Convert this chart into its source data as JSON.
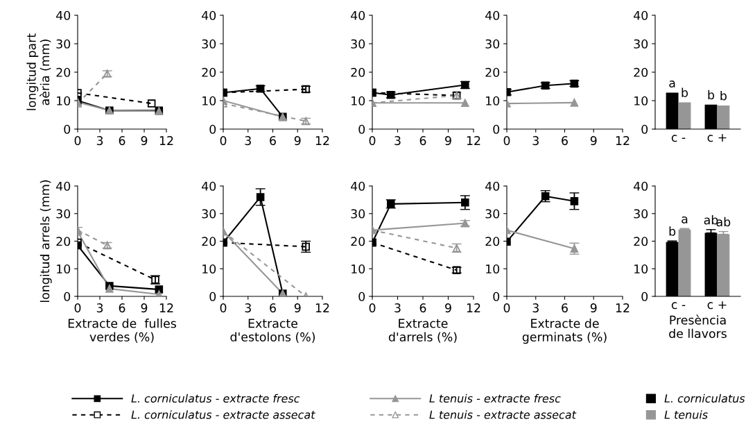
{
  "chart_data": [
    {
      "type": "line",
      "ylabel": "longitud part\naèria (mm)",
      "xlim": [
        0,
        12
      ],
      "xticks": [
        0,
        3,
        6,
        9,
        12
      ],
      "ylim": [
        0,
        40
      ],
      "yticks": [
        0,
        10,
        20,
        30,
        40
      ],
      "legend": "bottom",
      "series": [
        {
          "name": "L. corniculatus - extracte fresc",
          "color": "#000000",
          "marker": "square",
          "line_style": "solid",
          "x": [
            0,
            4.3,
            11
          ],
          "values": [
            10,
            6.5,
            6.5
          ]
        },
        {
          "name": "L. corniculatus - extracte assecat",
          "color": "#000000",
          "marker": "square",
          "line_style": "dashed",
          "x": [
            0,
            10
          ],
          "values": [
            12.7,
            9
          ]
        },
        {
          "name": "L tenuis - extracte fresc",
          "color": "#969696",
          "marker": "triangle",
          "line_style": "solid",
          "x": [
            0,
            4.3,
            11
          ],
          "values": [
            9.5,
            6.5,
            6.3
          ]
        },
        {
          "name": "L tenuis - extracte assecat",
          "color": "#969696",
          "marker": "triangle",
          "line_style": "dashed",
          "x": [
            0,
            4
          ],
          "values": [
            9,
            19.5
          ],
          "errors": [
            null,
            1
          ]
        }
      ]
    },
    {
      "type": "line",
      "xlim": [
        0,
        12
      ],
      "xticks": [
        0,
        3,
        6,
        9,
        12
      ],
      "ylim": [
        0,
        40
      ],
      "yticks": [
        0,
        10,
        20,
        30,
        40
      ],
      "series": [
        {
          "color": "#000000",
          "marker": "square",
          "line_style": "solid",
          "x": [
            0,
            4.5,
            7.2
          ],
          "values": [
            12.8,
            14.2,
            4.3
          ],
          "errors": [
            null,
            1,
            null
          ]
        },
        {
          "color": "#000000",
          "marker": "square",
          "line_style": "dashed",
          "x": [
            0,
            10
          ],
          "values": [
            12.8,
            14
          ],
          "errors": [
            null,
            1
          ]
        },
        {
          "color": "#969696",
          "marker": "triangle",
          "line_style": "solid",
          "x": [
            0,
            7.2
          ],
          "values": [
            10,
            4.3
          ]
        },
        {
          "color": "#969696",
          "marker": "triangle",
          "line_style": "dashed",
          "x": [
            0,
            10
          ],
          "values": [
            9,
            2.8
          ],
          "errors": [
            null,
            1
          ]
        }
      ]
    },
    {
      "type": "line",
      "xlim": [
        0,
        12
      ],
      "xticks": [
        0,
        3,
        6,
        9,
        12
      ],
      "ylim": [
        0,
        40
      ],
      "yticks": [
        0,
        10,
        20,
        30,
        40
      ],
      "series": [
        {
          "color": "#000000",
          "marker": "square",
          "line_style": "solid",
          "x": [
            0,
            2.2,
            11
          ],
          "values": [
            12.8,
            12,
            15.5
          ],
          "errors": [
            null,
            1,
            1.2
          ]
        },
        {
          "color": "#000000",
          "marker": "square",
          "line_style": "dashed",
          "x": [
            0,
            10
          ],
          "values": [
            12.8,
            11.8
          ]
        },
        {
          "color": "#969696",
          "marker": "triangle",
          "line_style": "solid",
          "x": [
            0,
            11
          ],
          "values": [
            9.2,
            9.2
          ]
        },
        {
          "color": "#969696",
          "marker": "triangle",
          "line_style": "dashed",
          "x": [
            0,
            10
          ],
          "values": [
            9.2,
            11.8
          ],
          "errors": [
            null,
            1
          ]
        }
      ]
    },
    {
      "type": "line",
      "xlim": [
        0,
        12
      ],
      "xticks": [
        0,
        3,
        6,
        9,
        12
      ],
      "ylim": [
        0,
        40
      ],
      "yticks": [
        0,
        10,
        20,
        30,
        40
      ],
      "series": [
        {
          "color": "#000000",
          "marker": "square",
          "line_style": "solid",
          "x": [
            0,
            4,
            7
          ],
          "values": [
            13,
            15.3,
            16
          ],
          "errors": [
            1,
            1,
            1
          ]
        },
        {
          "color": "#969696",
          "marker": "triangle",
          "line_style": "solid",
          "x": [
            0,
            7
          ],
          "values": [
            9,
            9.3
          ]
        }
      ]
    },
    {
      "type": "bar",
      "categories": [
        "c -",
        "c +"
      ],
      "ylim": [
        0,
        40
      ],
      "yticks": [
        0,
        10,
        20,
        30,
        40
      ],
      "legend": "bottom right",
      "series": [
        {
          "name": "L. corniculatus",
          "color": "#000000",
          "values": [
            12.8,
            8.6
          ],
          "value_labels": [
            "a",
            "b"
          ]
        },
        {
          "name": "L tenuis",
          "color": "#969696",
          "values": [
            9.4,
            8.3
          ],
          "value_labels": [
            "b",
            "b"
          ]
        }
      ]
    },
    {
      "type": "line",
      "ylabel": "longitud arrels (mm)",
      "xlabel": "Extracte de  fulles\nverdes (%)",
      "xlim": [
        0,
        12
      ],
      "xticks": [
        0,
        3,
        6,
        9,
        12
      ],
      "ylim": [
        0,
        40
      ],
      "yticks": [
        0,
        10,
        20,
        30,
        40
      ],
      "series": [
        {
          "color": "#000000",
          "marker": "square",
          "line_style": "solid",
          "x": [
            0,
            4.3,
            11
          ],
          "values": [
            18.5,
            3.8,
            2.5
          ]
        },
        {
          "color": "#000000",
          "marker": "square",
          "line_style": "dashed",
          "x": [
            0,
            10.5
          ],
          "values": [
            19.5,
            6
          ],
          "errors": [
            null,
            1.5
          ]
        },
        {
          "color": "#969696",
          "marker": "triangle",
          "line_style": "solid",
          "x": [
            0,
            4.3,
            11
          ],
          "values": [
            23.5,
            2.8,
            0.7
          ]
        },
        {
          "color": "#969696",
          "marker": "triangle",
          "line_style": "dashed",
          "x": [
            0,
            4
          ],
          "values": [
            24,
            18.5
          ],
          "errors": [
            1,
            1
          ]
        }
      ]
    },
    {
      "type": "line",
      "xlabel": "Extracte\nd'estolons (%)",
      "xlim": [
        0,
        12
      ],
      "xticks": [
        0,
        3,
        6,
        9,
        12
      ],
      "ylim": [
        0,
        40
      ],
      "yticks": [
        0,
        10,
        20,
        30,
        40
      ],
      "series": [
        {
          "color": "#000000",
          "marker": "square",
          "line_style": "solid",
          "x": [
            0,
            4.5,
            7.2
          ],
          "values": [
            19.5,
            36,
            1
          ],
          "errors": [
            null,
            3,
            null
          ]
        },
        {
          "color": "#000000",
          "marker": "square",
          "line_style": "dashed",
          "x": [
            0,
            10
          ],
          "values": [
            19.5,
            18
          ],
          "errors": [
            null,
            2
          ]
        },
        {
          "color": "#969696",
          "marker": "triangle",
          "line_style": "solid",
          "x": [
            0,
            7.2
          ],
          "values": [
            23.5,
            1
          ]
        },
        {
          "color": "#969696",
          "marker": "triangle",
          "line_style": "dashed",
          "x": [
            0,
            10
          ],
          "values": [
            23.5,
            0
          ]
        }
      ]
    },
    {
      "type": "line",
      "xlabel": "Extracte\nd'arrels (%)",
      "xlim": [
        0,
        12
      ],
      "xticks": [
        0,
        3,
        6,
        9,
        12
      ],
      "ylim": [
        0,
        40
      ],
      "yticks": [
        0,
        10,
        20,
        30,
        40
      ],
      "series": [
        {
          "color": "#000000",
          "marker": "square",
          "line_style": "solid",
          "x": [
            0,
            2.2,
            11
          ],
          "values": [
            19.5,
            33.5,
            34
          ],
          "errors": [
            null,
            1.5,
            2.5
          ]
        },
        {
          "color": "#000000",
          "marker": "square",
          "line_style": "dashed",
          "x": [
            0,
            10
          ],
          "values": [
            19.5,
            9.5
          ],
          "errors": [
            null,
            1
          ]
        },
        {
          "color": "#969696",
          "marker": "triangle",
          "line_style": "solid",
          "x": [
            0,
            11
          ],
          "values": [
            24,
            26.5
          ],
          "errors": [
            null,
            1
          ]
        },
        {
          "color": "#969696",
          "marker": "triangle",
          "line_style": "dashed",
          "x": [
            0,
            10
          ],
          "values": [
            24,
            17.5
          ],
          "errors": [
            null,
            1.5
          ]
        }
      ]
    },
    {
      "type": "line",
      "xlabel": "Extracte de\ngerminats (%)",
      "xlim": [
        0,
        12
      ],
      "xticks": [
        0,
        3,
        6,
        9,
        12
      ],
      "ylim": [
        0,
        40
      ],
      "yticks": [
        0,
        10,
        20,
        30,
        40
      ],
      "series": [
        {
          "color": "#000000",
          "marker": "square",
          "line_style": "solid",
          "x": [
            0,
            4,
            7
          ],
          "values": [
            19.8,
            36.3,
            34.5
          ],
          "errors": [
            null,
            2,
            3
          ]
        },
        {
          "color": "#969696",
          "marker": "triangle",
          "line_style": "solid",
          "x": [
            0,
            7
          ],
          "values": [
            24,
            17.3
          ],
          "errors": [
            null,
            2
          ]
        }
      ]
    },
    {
      "type": "bar",
      "xlabel": "Presència\nde llavors",
      "categories": [
        "c -",
        "c +"
      ],
      "ylim": [
        0,
        40
      ],
      "yticks": [
        0,
        10,
        20,
        30,
        40
      ],
      "series": [
        {
          "color": "#000000",
          "values": [
            19.7,
            23
          ],
          "errors": [
            0.4,
            1.2
          ],
          "value_labels": [
            "b",
            "ab"
          ]
        },
        {
          "color": "#969696",
          "values": [
            24.2,
            22.5
          ],
          "errors": [
            0.4,
            1
          ],
          "value_labels": [
            "a",
            "ab"
          ]
        }
      ]
    }
  ]
}
